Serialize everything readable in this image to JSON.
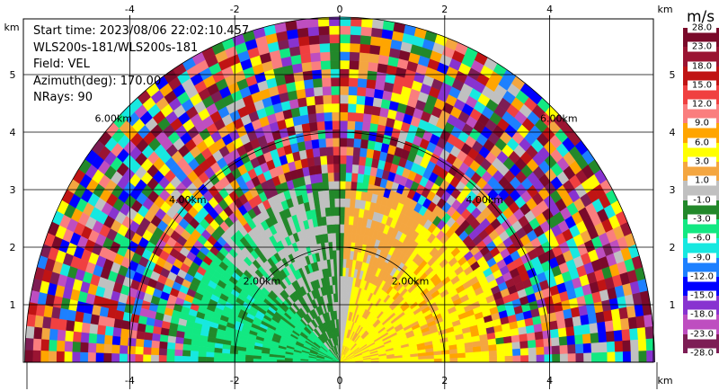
{
  "info": {
    "start_time": "Start time: 2023/08/06 22:02:10.457",
    "station": "WLS200s-181/WLS200s-181",
    "field": "Field: VEL",
    "azimuth": "Azimuth(deg): 170.00",
    "nrays": "NRays: 90"
  },
  "axis_unit_label": "km",
  "colorbar": {
    "unit": "m/s",
    "ticks": [
      "28.0",
      "23.0",
      "18.0",
      "15.0",
      "12.0",
      "9.0",
      "6.0",
      "3.0",
      "1.0",
      "-1.0",
      "-3.0",
      "-6.0",
      "-9.0",
      "-12.0",
      "-15.0",
      "-18.0",
      "-23.0",
      "-28.0"
    ],
    "colors": [
      "#7a0a2a",
      "#9a1432",
      "#c01414",
      "#f04040",
      "#fa7e7e",
      "#ffa500",
      "#ffff00",
      "#f4a640",
      "#c0c0c0",
      "#22882a",
      "#12e882",
      "#17e8e0",
      "#1d80ff",
      "#0000ff",
      "#8833d0",
      "#be4ec0",
      "#7d1d55"
    ]
  },
  "chart_data": {
    "type": "heatmap",
    "title": "",
    "xlabel": "km",
    "ylabel": "km",
    "x_ticks": [
      -4,
      -2,
      0,
      2,
      4
    ],
    "y_ticks": [
      1,
      2,
      3,
      4,
      5
    ],
    "xlim": [
      -6.0,
      6.0
    ],
    "ylim": [
      0.0,
      6.0
    ],
    "range_rings_km": [
      2.0,
      4.0,
      6.0
    ],
    "range_ring_labels": [
      "2.00km",
      "4.00km",
      "6.00km"
    ],
    "grid": true,
    "colormap_levels_ms": [
      28,
      23,
      18,
      15,
      12,
      9,
      6,
      3,
      1,
      -1,
      -3,
      -6,
      -9,
      -12,
      -15,
      -18,
      -23,
      -28
    ],
    "field": "VEL",
    "azimuth_deg": 170.0,
    "nrays": 90,
    "max_range_km": 6.0
  }
}
